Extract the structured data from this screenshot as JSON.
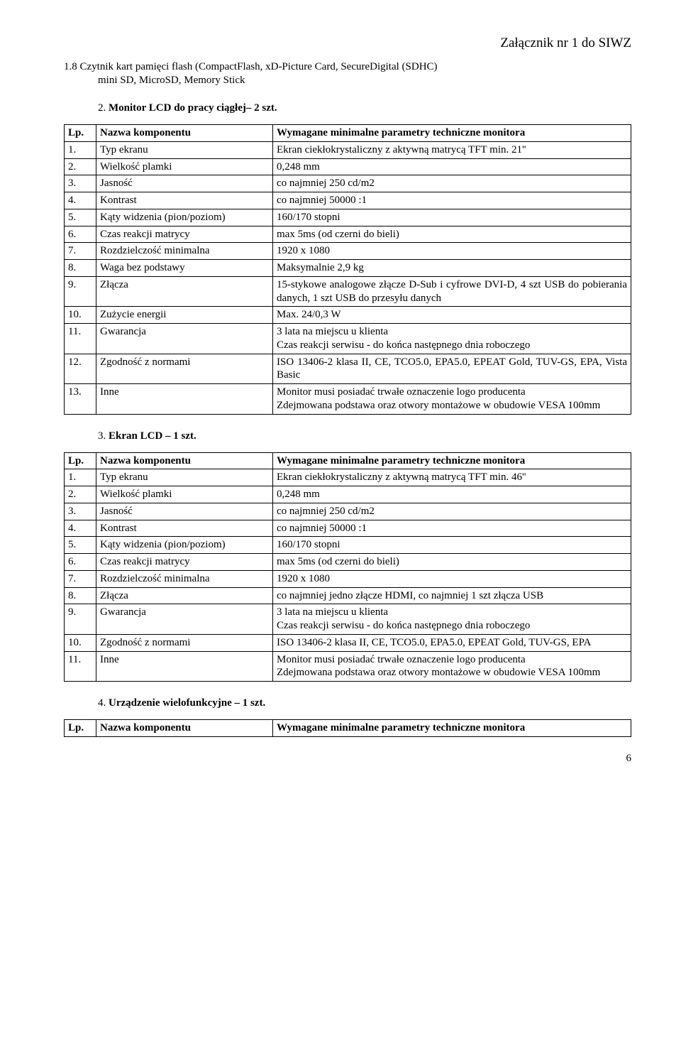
{
  "header": {
    "attachment": "Załącznik nr 1 do SIWZ"
  },
  "section18": {
    "line1": "1.8 Czytnik kart pamięci flash (CompactFlash, xD-Picture Card, SecureDigital (SDHC)",
    "line2": "mini SD, MicroSD, Memory Stick"
  },
  "heading2": {
    "num": "2.",
    "text": "Monitor LCD do pracy ciągłej– 2 szt.",
    "bold": true
  },
  "heading3": {
    "num": "3.",
    "text": "Ekran LCD – 1 szt.",
    "bold": true
  },
  "heading4": {
    "num": "4.",
    "text": "Urządzenie wielofunkcyjne – 1 szt.",
    "bold": true
  },
  "t1": {
    "h": {
      "lp": "Lp.",
      "name": "Nazwa komponentu",
      "req": "Wymagane minimalne parametry techniczne monitora"
    },
    "rows": [
      {
        "n": "1.",
        "name": "Typ ekranu",
        "val": "Ekran ciekłokrystaliczny z aktywną matrycą TFT min. 21''"
      },
      {
        "n": "2.",
        "name": "Wielkość plamki",
        "val": "0,248 mm"
      },
      {
        "n": "3.",
        "name": "Jasność",
        "val": "co najmniej 250 cd/m2"
      },
      {
        "n": "4.",
        "name": "Kontrast",
        "val": "co najmniej 50000 :1"
      },
      {
        "n": "5.",
        "name": "Kąty widzenia (pion/poziom)",
        "val": "160/170 stopni"
      },
      {
        "n": "6.",
        "name": "Czas reakcji matrycy",
        "val": "max 5ms (od czerni do bieli)"
      },
      {
        "n": "7.",
        "name": "Rozdzielczość minimalna",
        "val": "1920 x 1080"
      },
      {
        "n": "8.",
        "name": "Waga bez podstawy",
        "val": "Maksymalnie 2,9 kg"
      },
      {
        "n": "9.",
        "name": "Złącza",
        "val": "15-stykowe analogowe złącze D-Sub i cyfrowe DVI-D, 4 szt USB do pobierania danych, 1 szt USB do przesyłu danych"
      },
      {
        "n": "10.",
        "name": "Zużycie energii",
        "val": "Max. 24/0,3 W"
      },
      {
        "n": "11.",
        "name": "Gwarancja",
        "val": "3 lata na miejscu u klienta\nCzas reakcji serwisu - do końca następnego dnia roboczego"
      },
      {
        "n": "12.",
        "name": "Zgodność z normami",
        "val": "ISO 13406-2 klasa II, CE, TCO5.0, EPA5.0, EPEAT Gold, TUV-GS, EPA, Vista Basic"
      },
      {
        "n": "13.",
        "name": "Inne",
        "val": "Monitor musi posiadać trwałe oznaczenie logo producenta\nZdejmowana podstawa oraz otwory montażowe w obudowie VESA 100mm"
      }
    ]
  },
  "t2": {
    "h": {
      "lp": "Lp.",
      "name": "Nazwa komponentu",
      "req": "Wymagane minimalne parametry techniczne monitora"
    },
    "rows": [
      {
        "n": "1.",
        "name": "Typ ekranu",
        "val": "Ekran ciekłokrystaliczny z aktywną matrycą TFT min. 46''"
      },
      {
        "n": "2.",
        "name": "Wielkość plamki",
        "val": "0,248 mm"
      },
      {
        "n": "3.",
        "name": "Jasność",
        "val": "co najmniej 250 cd/m2"
      },
      {
        "n": "4.",
        "name": "Kontrast",
        "val": "co najmniej 50000 :1"
      },
      {
        "n": "5.",
        "name": "Kąty widzenia (pion/poziom)",
        "val": "160/170 stopni"
      },
      {
        "n": "6.",
        "name": "Czas reakcji matrycy",
        "val": "max 5ms (od czerni do bieli)"
      },
      {
        "n": "7.",
        "name": "Rozdzielczość minimalna",
        "val": "1920 x 1080"
      },
      {
        "n": "8.",
        "name": "Złącza",
        "val": "co najmniej jedno złącze HDMI, co najmniej 1 szt złącza USB"
      },
      {
        "n": "9.",
        "name": "Gwarancja",
        "val": "3 lata na miejscu u klienta\nCzas reakcji serwisu - do końca następnego dnia roboczego"
      },
      {
        "n": "10.",
        "name": "Zgodność z normami",
        "val": "ISO 13406-2 klasa II, CE, TCO5.0, EPA5.0, EPEAT Gold, TUV-GS, EPA"
      },
      {
        "n": "11.",
        "name": "Inne",
        "val": "Monitor musi posiadać trwałe oznaczenie logo producenta\nZdejmowana podstawa oraz otwory montażowe w obudowie VESA 100mm"
      }
    ]
  },
  "t3": {
    "h": {
      "lp": "Lp.",
      "name": "Nazwa komponentu",
      "req": "Wymagane minimalne parametry techniczne monitora"
    }
  },
  "page": {
    "num": "6"
  }
}
